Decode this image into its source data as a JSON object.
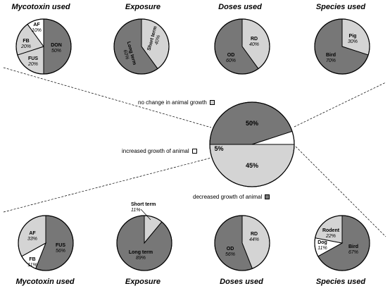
{
  "colors": {
    "dark": "#777777",
    "light": "#d4d4d4",
    "white": "#ffffff",
    "edge": "#000000"
  },
  "headers": {
    "top": [
      "Mycotoxin used",
      "Exposure",
      "Doses used",
      "Species used"
    ],
    "bottom": [
      "Mycotoxin used",
      "Exposure",
      "Doses used",
      "Species used"
    ]
  },
  "legend": {
    "no_change": "no change in animal growth",
    "increased": "increased growth of animal",
    "decreased": "decreased growth of animal"
  },
  "chart_data": [
    {
      "type": "pie",
      "id": "center",
      "title": "",
      "slices": [
        {
          "label": "",
          "value": 50,
          "display": "50%",
          "fill": "light"
        },
        {
          "label": "",
          "value": 45,
          "display": "45%",
          "fill": "dark"
        },
        {
          "label": "",
          "value": 5,
          "display": "5%",
          "fill": "white"
        }
      ]
    },
    {
      "type": "pie",
      "id": "top-mycotoxin",
      "title": "Mycotoxin used",
      "slices": [
        {
          "label": "DON",
          "value": 50,
          "display": "50%",
          "fill": "dark"
        },
        {
          "label": "FUS",
          "value": 20,
          "display": "20%",
          "fill": "light"
        },
        {
          "label": "FB",
          "value": 20,
          "display": "20%",
          "fill": "light"
        },
        {
          "label": "AF",
          "value": 10,
          "display": "10%",
          "fill": "white"
        }
      ]
    },
    {
      "type": "pie",
      "id": "top-exposure",
      "title": "Exposure",
      "slices": [
        {
          "label": "Short term",
          "value": 40,
          "display": "40%",
          "fill": "light"
        },
        {
          "label": "Long term",
          "value": 60,
          "display": "60%",
          "fill": "dark"
        }
      ]
    },
    {
      "type": "pie",
      "id": "top-doses",
      "title": "Doses used",
      "slices": [
        {
          "label": "RD",
          "value": 40,
          "display": "40%",
          "fill": "light"
        },
        {
          "label": "OD",
          "value": 60,
          "display": "60%",
          "fill": "dark"
        }
      ]
    },
    {
      "type": "pie",
      "id": "top-species",
      "title": "Species used",
      "slices": [
        {
          "label": "Pig",
          "value": 30,
          "display": "30%",
          "fill": "light"
        },
        {
          "label": "Bird",
          "value": 70,
          "display": "70%",
          "fill": "dark"
        }
      ]
    },
    {
      "type": "pie",
      "id": "bottom-mycotoxin",
      "title": "Mycotoxin used",
      "slices": [
        {
          "label": "FUS",
          "value": 56,
          "display": "56%",
          "fill": "dark"
        },
        {
          "label": "FB",
          "value": 11,
          "display": "11%",
          "fill": "white"
        },
        {
          "label": "AF",
          "value": 33,
          "display": "33%",
          "fill": "light"
        }
      ]
    },
    {
      "type": "pie",
      "id": "bottom-exposure",
      "title": "Exposure",
      "slices": [
        {
          "label": "Short term",
          "value": 11,
          "display": "11%",
          "fill": "light"
        },
        {
          "label": "Long term",
          "value": 89,
          "display": "89%",
          "fill": "dark"
        }
      ]
    },
    {
      "type": "pie",
      "id": "bottom-doses",
      "title": "Doses used",
      "slices": [
        {
          "label": "RD",
          "value": 44,
          "display": "44%",
          "fill": "light"
        },
        {
          "label": "OD",
          "value": 56,
          "display": "56%",
          "fill": "dark"
        }
      ]
    },
    {
      "type": "pie",
      "id": "bottom-species",
      "title": "Species used",
      "slices": [
        {
          "label": "Bird",
          "value": 67,
          "display": "67%",
          "fill": "dark"
        },
        {
          "label": "Dog",
          "value": 11,
          "display": "11%",
          "fill": "white"
        },
        {
          "label": "Rodent",
          "value": 22,
          "display": "22%",
          "fill": "light"
        }
      ]
    }
  ]
}
